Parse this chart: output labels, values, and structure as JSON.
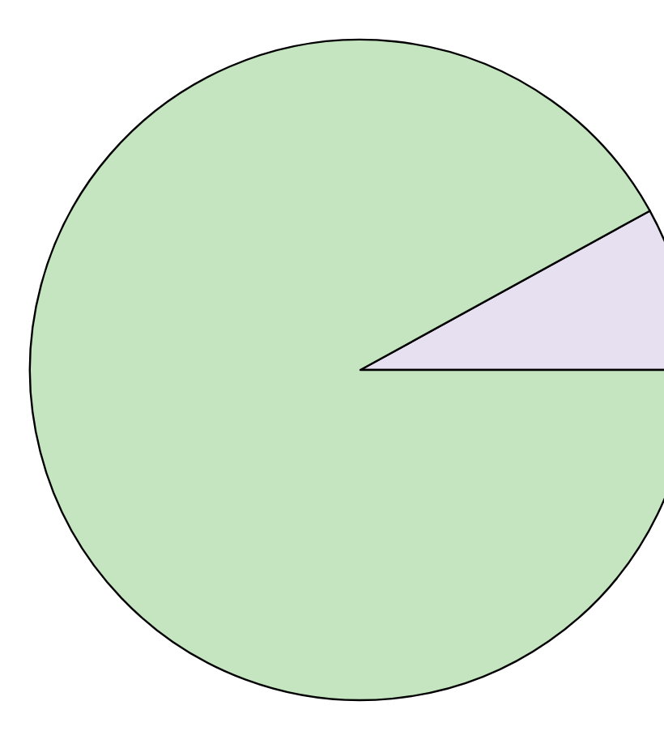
{
  "chart_data": {
    "type": "pie",
    "categories": [
      null,
      null
    ],
    "values": [
      8,
      92
    ],
    "colors": [
      "#e6e0f0",
      "#c5e5c0"
    ]
  }
}
